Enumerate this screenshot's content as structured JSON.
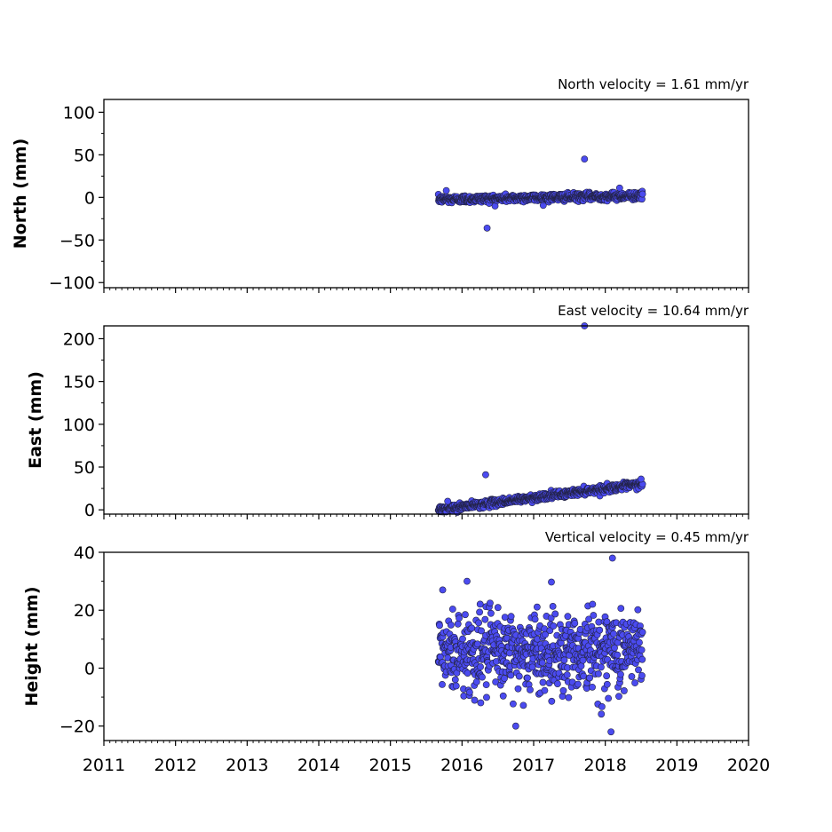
{
  "chart_data": {
    "type": "scatter",
    "marker_color": "#4B4BF0",
    "marker_edge_color": "#222244",
    "x_axis": {
      "range": [
        2011,
        2020
      ],
      "ticks": [
        2011,
        2012,
        2013,
        2014,
        2015,
        2016,
        2017,
        2018,
        2019,
        2020
      ],
      "tick_labels": [
        "2011",
        "2012",
        "2013",
        "2014",
        "2015",
        "2016",
        "2017",
        "2018",
        "2019",
        "2020"
      ],
      "shared": true,
      "data_span": [
        2015.67,
        2018.52
      ]
    },
    "panels": [
      {
        "id": "north",
        "title": "North velocity = 1.61 mm/yr",
        "ylabel": "North (mm)",
        "ylim": [
          -106,
          115
        ],
        "yticks": [
          -100,
          -50,
          0,
          50,
          100
        ],
        "ytick_labels": [
          "−100",
          "−50",
          "0",
          "50",
          "100"
        ],
        "velocity_mm_per_yr": 1.61,
        "intercept_mm": -2.5,
        "scatter_mm": 2.2,
        "outliers": [
          [
            2015.78,
            8
          ],
          [
            2016.35,
            -36
          ],
          [
            2017.71,
            45
          ],
          [
            2018.2,
            11
          ]
        ]
      },
      {
        "id": "east",
        "title": "East velocity = 10.64 mm/yr",
        "ylabel": "East (mm)",
        "ylim": [
          -5,
          215
        ],
        "yticks": [
          0,
          50,
          100,
          150,
          200
        ],
        "ytick_labels": [
          "0",
          "50",
          "100",
          "150",
          "200"
        ],
        "velocity_mm_per_yr": 10.64,
        "intercept_mm": 0,
        "scatter_mm": 2.0,
        "outliers": [
          [
            2016.33,
            41
          ],
          [
            2017.71,
            215
          ],
          [
            2015.8,
            10
          ],
          [
            2018.5,
            36
          ]
        ]
      },
      {
        "id": "height",
        "title": "Vertical velocity = 0.45 mm/yr",
        "ylabel": "Height (mm)",
        "ylim": [
          -25,
          40
        ],
        "yticks": [
          -20,
          0,
          20,
          40
        ],
        "ytick_labels": [
          "−20",
          "0",
          "20",
          "40"
        ],
        "velocity_mm_per_yr": 0.45,
        "intercept_mm": 5,
        "scatter_mm": 7,
        "outliers": [
          [
            2018.1,
            38
          ],
          [
            2018.08,
            -22
          ],
          [
            2016.75,
            -20
          ],
          [
            2016.07,
            30
          ],
          [
            2015.73,
            27
          ]
        ]
      }
    ]
  }
}
